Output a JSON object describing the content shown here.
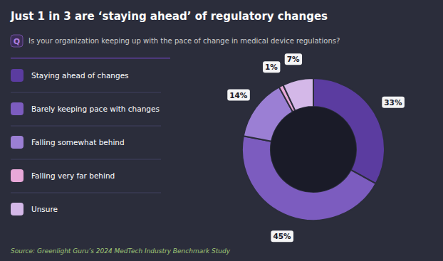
{
  "chart_data": {
    "type": "pie",
    "title": "Just 1 in 3 are ‘staying ahead’ of regulatory changes",
    "subtitle": "Is your organization keeping up with the pace of change in medical device regulations?",
    "annotations": [
      "Q",
      "Source: Greenlight Guru’s 2024 MedTech Industry Benchmark Study"
    ],
    "categories": [
      "Staying ahead of changes",
      "Barely keeping pace with changes",
      "Falling somewhat behind",
      "Falling very far behind",
      "Unsure"
    ],
    "values": [
      33,
      45,
      14,
      1,
      7
    ],
    "value_labels": [
      "33%",
      "45%",
      "14%",
      "1%",
      "7%"
    ],
    "colors": [
      "#5b3ca0",
      "#7c5cbf",
      "#9b7fd4",
      "#e8a8d8",
      "#d4b8e8"
    ],
    "data_labels": true,
    "legend": "left"
  }
}
